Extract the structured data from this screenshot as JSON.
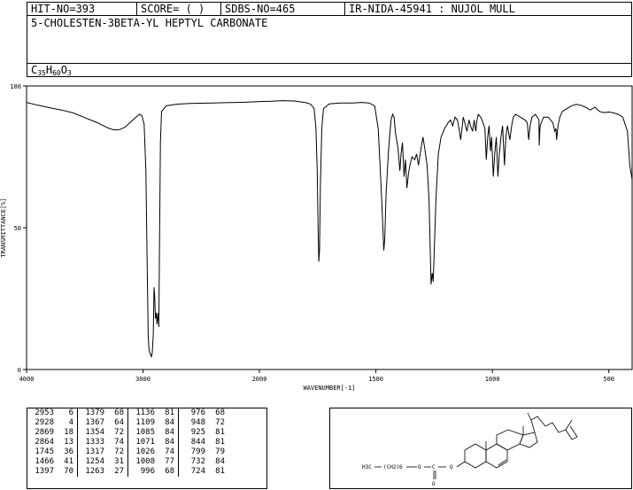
{
  "header": {
    "hit_no": "HIT-NO=393",
    "score": "SCORE=  (   )",
    "sdbs_no": "SDBS-NO=465",
    "ir_code": "IR-NIDA-45941 : NUJOL MULL"
  },
  "compound": {
    "name": "5-CHOLESTEN-3BETA-YL HEPTYL CARBONATE",
    "formula_parts": [
      "C",
      "35",
      "H",
      "60",
      "O",
      "3"
    ]
  },
  "structure": {
    "chain_label_1": "H3C",
    "chain_label_2": "(CH2)6",
    "ester_o": "O",
    "carbonyl_c": "C",
    "carbonyl_o": "O"
  },
  "chart_data": {
    "type": "line",
    "xlabel": "WAVENUMBER[-1]",
    "ylabel": "TRANSMITTANCE[%]",
    "xlim": [
      4000,
      400
    ],
    "ylim": [
      0,
      100
    ],
    "x_ticks": [
      "4000",
      "3000",
      "2000",
      "1500",
      "1000",
      "500"
    ],
    "y_ticks": [
      "0",
      "50",
      "100"
    ],
    "grid": false,
    "series": [
      {
        "points": [
          [
            4000,
            94.2
          ],
          [
            3900,
            93.2
          ],
          [
            3800,
            92.3
          ],
          [
            3700,
            91.5
          ],
          [
            3600,
            90.5
          ],
          [
            3500,
            88.8
          ],
          [
            3400,
            87.2
          ],
          [
            3300,
            85.2
          ],
          [
            3250,
            84.5
          ],
          [
            3200,
            84.6
          ],
          [
            3150,
            85.6
          ],
          [
            3100,
            87.5
          ],
          [
            3060,
            89.0
          ],
          [
            3030,
            90.0
          ],
          [
            3010,
            89.6
          ],
          [
            2990,
            86.5
          ],
          [
            2975,
            70
          ],
          [
            2965,
            40
          ],
          [
            2955,
            12
          ],
          [
            2948,
            7
          ],
          [
            2938,
            5.5
          ],
          [
            2928,
            4.5
          ],
          [
            2920,
            6
          ],
          [
            2912,
            12
          ],
          [
            2905,
            29
          ],
          [
            2900,
            26
          ],
          [
            2893,
            18
          ],
          [
            2885,
            20
          ],
          [
            2880,
            16
          ],
          [
            2870,
            20
          ],
          [
            2864,
            15
          ],
          [
            2858,
            45
          ],
          [
            2850,
            80
          ],
          [
            2840,
            91
          ],
          [
            2800,
            93.0
          ],
          [
            2700,
            93.6
          ],
          [
            2600,
            93.8
          ],
          [
            2500,
            93.9
          ],
          [
            2400,
            94.0
          ],
          [
            2300,
            94.1
          ],
          [
            2200,
            94.2
          ],
          [
            2100,
            94.3
          ],
          [
            2000,
            94.5
          ],
          [
            1950,
            94.6
          ],
          [
            1900,
            94.8
          ],
          [
            1850,
            94.7
          ],
          [
            1800,
            94.1
          ],
          [
            1780,
            93.6
          ],
          [
            1765,
            92
          ],
          [
            1757,
            85
          ],
          [
            1752,
            70
          ],
          [
            1748,
            50
          ],
          [
            1745,
            38
          ],
          [
            1742,
            42
          ],
          [
            1738,
            65
          ],
          [
            1732,
            85
          ],
          [
            1725,
            92
          ],
          [
            1700,
            93.7
          ],
          [
            1650,
            94.0
          ],
          [
            1600,
            94.0
          ],
          [
            1560,
            94.2
          ],
          [
            1530,
            94.0
          ],
          [
            1505,
            93.0
          ],
          [
            1490,
            85
          ],
          [
            1478,
            65
          ],
          [
            1470,
            50
          ],
          [
            1466,
            42
          ],
          [
            1462,
            46
          ],
          [
            1456,
            62
          ],
          [
            1445,
            78
          ],
          [
            1435,
            88
          ],
          [
            1428,
            90
          ],
          [
            1422,
            89
          ],
          [
            1415,
            83
          ],
          [
            1405,
            78
          ],
          [
            1397,
            70
          ],
          [
            1392,
            76
          ],
          [
            1386,
            80
          ],
          [
            1379,
            68
          ],
          [
            1373,
            74
          ],
          [
            1367,
            64
          ],
          [
            1360,
            69
          ],
          [
            1354,
            72
          ],
          [
            1345,
            75
          ],
          [
            1333,
            74
          ],
          [
            1325,
            76
          ],
          [
            1317,
            72
          ],
          [
            1308,
            77
          ],
          [
            1298,
            82
          ],
          [
            1290,
            78
          ],
          [
            1280,
            72
          ],
          [
            1272,
            60
          ],
          [
            1263,
            30
          ],
          [
            1258,
            34
          ],
          [
            1254,
            31
          ],
          [
            1250,
            40
          ],
          [
            1242,
            60
          ],
          [
            1232,
            76
          ],
          [
            1220,
            82
          ],
          [
            1205,
            85
          ],
          [
            1190,
            87
          ],
          [
            1180,
            88
          ],
          [
            1170,
            86
          ],
          [
            1160,
            89
          ],
          [
            1150,
            88
          ],
          [
            1141,
            84
          ],
          [
            1136,
            81
          ],
          [
            1130,
            85
          ],
          [
            1125,
            89
          ],
          [
            1118,
            87
          ],
          [
            1109,
            84
          ],
          [
            1100,
            88
          ],
          [
            1094,
            86
          ],
          [
            1085,
            84
          ],
          [
            1078,
            88
          ],
          [
            1071,
            84
          ],
          [
            1066,
            88
          ],
          [
            1060,
            90
          ],
          [
            1050,
            89
          ],
          [
            1040,
            87
          ],
          [
            1032,
            85
          ],
          [
            1026,
            74
          ],
          [
            1020,
            82
          ],
          [
            1014,
            86
          ],
          [
            1008,
            77
          ],
          [
            1003,
            82
          ],
          [
            996,
            68
          ],
          [
            990,
            76
          ],
          [
            983,
            82
          ],
          [
            976,
            68
          ],
          [
            970,
            76
          ],
          [
            963,
            82
          ],
          [
            956,
            86
          ],
          [
            948,
            72
          ],
          [
            942,
            82
          ],
          [
            935,
            86
          ],
          [
            925,
            81
          ],
          [
            917,
            86
          ],
          [
            910,
            89
          ],
          [
            900,
            90
          ],
          [
            880,
            89
          ],
          [
            860,
            88
          ],
          [
            850,
            87
          ],
          [
            844,
            81
          ],
          [
            838,
            86
          ],
          [
            830,
            89
          ],
          [
            815,
            90
          ],
          [
            800,
            88
          ],
          [
            799,
            79
          ],
          [
            795,
            86
          ],
          [
            780,
            89
          ],
          [
            760,
            89
          ],
          [
            740,
            87
          ],
          [
            732,
            84
          ],
          [
            727,
            85
          ],
          [
            724,
            81
          ],
          [
            718,
            86
          ],
          [
            710,
            89
          ],
          [
            700,
            91
          ],
          [
            680,
            92
          ],
          [
            660,
            93
          ],
          [
            640,
            93.5
          ],
          [
            620,
            93.2
          ],
          [
            600,
            92.5
          ],
          [
            580,
            91.5
          ],
          [
            560,
            92.5
          ],
          [
            540,
            91.0
          ],
          [
            520,
            90.6
          ],
          [
            500,
            90.8
          ],
          [
            480,
            90.5
          ],
          [
            460,
            90.0
          ],
          [
            440,
            89.0
          ],
          [
            420,
            84
          ],
          [
            410,
            72
          ],
          [
            400,
            67
          ]
        ]
      }
    ]
  },
  "peak_table": {
    "rows": [
      [
        [
          "2953",
          "6"
        ],
        [
          "1379",
          "68"
        ],
        [
          "1136",
          "81"
        ],
        [
          "976",
          "68"
        ]
      ],
      [
        [
          "2928",
          "4"
        ],
        [
          "1367",
          "64"
        ],
        [
          "1109",
          "84"
        ],
        [
          "948",
          "72"
        ]
      ],
      [
        [
          "2869",
          "18"
        ],
        [
          "1354",
          "72"
        ],
        [
          "1085",
          "84"
        ],
        [
          "925",
          "81"
        ]
      ],
      [
        [
          "2864",
          "13"
        ],
        [
          "1333",
          "74"
        ],
        [
          "1071",
          "84"
        ],
        [
          "844",
          "81"
        ]
      ],
      [
        [
          "1745",
          "36"
        ],
        [
          "1317",
          "72"
        ],
        [
          "1026",
          "74"
        ],
        [
          "799",
          "79"
        ]
      ],
      [
        [
          "1466",
          "41"
        ],
        [
          "1254",
          "31"
        ],
        [
          "1008",
          "77"
        ],
        [
          "732",
          "84"
        ]
      ],
      [
        [
          "1397",
          "70"
        ],
        [
          "1263",
          "27"
        ],
        [
          "996",
          "68"
        ],
        [
          "724",
          "81"
        ]
      ]
    ]
  }
}
